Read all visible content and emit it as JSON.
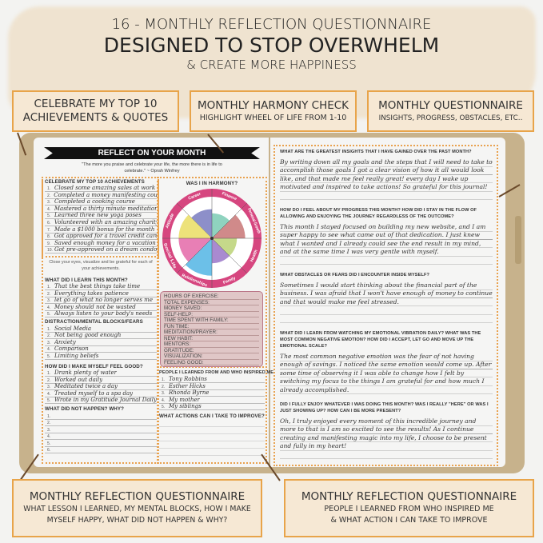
{
  "hero": {
    "line1": "16 - MONTHLY REFLECTION QUESTIONNAIRE",
    "line2": "DESIGNED TO STOP OVERWHELM",
    "line3": "& CREATE MORE HAPPINESS"
  },
  "callouts": [
    {
      "title": "CELEBRATE MY TOP 10",
      "title2": "ACHIEVEMENTS & QUOTES"
    },
    {
      "title": "MONTHLY HARMONY CHECK",
      "subtitle": "HIGHLIGHT WHEEL OF LIFE FROM 1-10"
    },
    {
      "title": "MONTHLY QUESTIONNAIRE",
      "subtitle": "INSIGHTS, PROGRESS, OBSTACLES, ETC.."
    },
    {
      "title": "MONTHLY REFLECTION QUESTIONNAIRE",
      "subtitle": "WHAT LESSON I LEARNED, MY MENTAL BLOCKS, HOW I MAKE MYSELF HAPPY, WHAT DID NOT HAPPEN & WHY?"
    },
    {
      "title": "MONTHLY REFLECTION QUESTIONNAIRE",
      "subtitle": "PEOPLE I LEARNED FROM WHO INSPIRED ME",
      "subtitle2": "& WHAT ACTION I CAN TAKE TO IMPROVE"
    }
  ],
  "left_page": {
    "banner": "REFLECT ON YOUR MONTH",
    "quote": "\"The more you praise and celebrate your life, the more there is in life to celebrate.\" ~ Oprah Winfrey",
    "achievements": {
      "header": "CELEBRATE MY TOP 10 ACHIEVEMENTS",
      "items": [
        "Closed some amazing sales at work",
        "Completed a money manifesting course",
        "Completed a cooking course",
        "Mastered a thirty minute meditation",
        "Learned three new yoga poses",
        "Volunteered with an amazing charity",
        "Made a $1000 bonus for the month",
        "Got approved for a travel credit card",
        "Saved enough money for a vacation",
        "Got pre-approved on a dream condo"
      ]
    },
    "gratitude_note": "Close your eyes, visualize and be grateful for each of your achievements.",
    "learned": {
      "header": "WHAT DID I LEARN THIS MONTH?",
      "items": [
        "That the best things take time",
        "Everything takes patience",
        "let go of what no longer serves me",
        "Money should not be wasted",
        "Always listen to your body's needs"
      ]
    },
    "blocks": {
      "header": "DISTRACTION/MENTAL BLOCKS/FEARS",
      "items": [
        "Social Media",
        "Not being good enough",
        "Anxiety",
        "Comparison",
        "Limiting beliefs"
      ]
    },
    "feel_good": {
      "header": "HOW DID I MAKE MYSELF FEEL GOOD?",
      "items": [
        "Drank plenty of water",
        "Worked out daily",
        "Meditated twice a day",
        "Treated myself to a spa day",
        "Wrote in my Gratitude Journal Daily"
      ]
    },
    "not_happen": {
      "header": "WHAT DID NOT HAPPEN? WHY?",
      "items": [
        "",
        "",
        "",
        "",
        "",
        ""
      ]
    },
    "harmony": {
      "header": "WAS I IN HARMONY?",
      "ring_color": "#d6467f",
      "segments": [
        {
          "name": "Career",
          "color": "#8d8fc9",
          "level": 7
        },
        {
          "name": "Finance",
          "color": "#8fd3bf",
          "level": 6
        },
        {
          "name": "Personal Growth",
          "color": "#d08a8a",
          "level": 8
        },
        {
          "name": "Health",
          "color": "#c5d98a",
          "level": 6
        },
        {
          "name": "Family",
          "color": "#a98ad0",
          "level": 6
        },
        {
          "name": "Relationships",
          "color": "#6cc0e8",
          "level": 9
        },
        {
          "name": "Social Life",
          "color": "#e87fb5",
          "level": 8
        },
        {
          "name": "Attitude",
          "color": "#ede27a",
          "level": 8
        }
      ]
    },
    "stats": [
      "HOURS OF EXERCISE:",
      "TOTAL EXPENSES:",
      "MONEY SAVED:",
      "SELF-HELP:",
      "TIME SPENT WITH FAMILY:",
      "FUN TIME:",
      "MEDITATION/PRAYER:",
      "NEW HABIT:",
      "MENTORS:",
      "GRATITUDE:",
      "VISUALIZATION:",
      "FEELING GOOD:"
    ],
    "people": {
      "header": "PEOPLE I LEARNED FROM AND WHO INSPIRED ME",
      "items": [
        "Tony Robbins",
        "Esther Hicks",
        "Rhonda Byrne",
        "My mother",
        "My siblings"
      ]
    },
    "actions": {
      "header": "WHAT ACTIONS CAN I TAKE TO IMPROVE?"
    }
  },
  "right_page": {
    "questions": [
      {
        "q": "WHAT ARE THE GREATEST INSIGHTS THAT I HAVE GAINED OVER THE PAST MONTH?",
        "a": "By writing down all my goals and the steps that I will need to take to accomplish those goals I got a clear vision of how it all would look like, and that made me feel really great! every day I wake up motivated and inspired to take actions! So grateful for this journal!"
      },
      {
        "q": "HOW DO I FEEL ABOUT MY PROGRESS THIS MONTH? HOW DID I STAY IN THE FLOW OF ALLOWING AND ENJOYING THE JOURNEY REGARDLESS OF THE OUTCOME?",
        "a": "This month I stayed focused on building my new website, and I am super happy to see what came out of that dedication. I just knew what I wanted and I already could see the end result in my mind, and at the same time I was very gentle with myself."
      },
      {
        "q": "WHAT OBSTACLES OR FEARS DID I ENCOUNTER INSIDE MYSELF?",
        "a": "Sometimes I would start thinking about the financial part of the business. I was afraid that I won't have enough of money to continue and that would make me feel stressed."
      },
      {
        "q": "WHAT DID I LEARN FROM WATCHING MY EMOTIONAL VIBRATION DAILY? WHAT WAS THE MOST COMMON NEGATIVE EMOTION? HOW DID I ACCEPT, LET GO AND MOVE UP THE EMOTIONAL SCALE?",
        "a": "The most common negative emotion was the fear of not having enough of savings. I noticed the same emotion would come up. After some time of observing it I was able to change how I felt by switching my focus to the things I am grateful for and how much I already accomplished."
      },
      {
        "q": "DID I FULLY ENJOY WHATEVER I WAS DOING THIS MONTH? WAS I REALLY \"HERE\" OR WAS I JUST SHOWING UP? HOW CAN I BE MORE PRESENT?",
        "a": "Oh, I truly enjoyed every moment of this incredible journey and more to that is I am so excited to see the results! As I continue creating and manifesting magic into my life, I choose to be present and fully in my heart!"
      }
    ]
  }
}
